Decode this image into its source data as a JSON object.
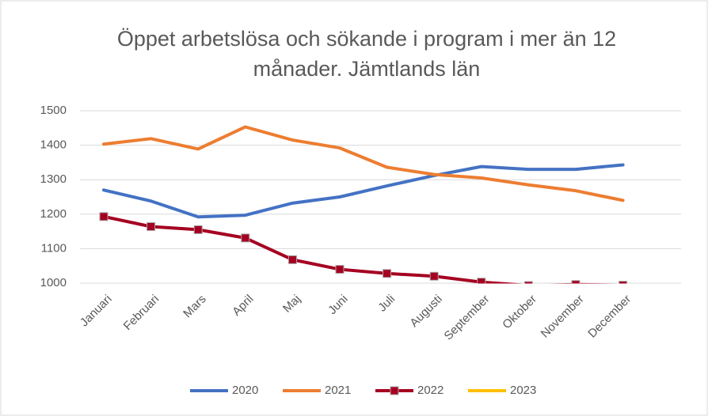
{
  "chart_data": {
    "type": "line",
    "title": "Öppet arbetslösa och sökande i program i mer än 12 månader. Jämtlands län",
    "categories": [
      "Januari",
      "Februari",
      "Mars",
      "April",
      "Maj",
      "Juni",
      "Juli",
      "Augusti",
      "September",
      "Oktober",
      "November",
      "December"
    ],
    "series": [
      {
        "name": "2020",
        "color": "#4472c4",
        "values": [
          1270,
          1238,
          1192,
          1197,
          1232,
          1250,
          1282,
          1312,
          1338,
          1330,
          1330,
          1343
        ]
      },
      {
        "name": "2021",
        "color": "#ed7d31",
        "values": [
          1403,
          1419,
          1389,
          1453,
          1415,
          1392,
          1336,
          1315,
          1305,
          1285,
          1268,
          1240
        ]
      },
      {
        "name": "2022",
        "color": "#a50021",
        "marker": "square",
        "values": [
          1193,
          1164,
          1155,
          1131,
          1068,
          1040,
          1028,
          1020,
          1003,
          993,
          996,
          994
        ]
      },
      {
        "name": "2023",
        "color": "#ffc000",
        "values": [
          null,
          null,
          null,
          null,
          null,
          null,
          null,
          null,
          null,
          null,
          null,
          null
        ]
      }
    ],
    "ylim": [
      1000,
      1500
    ],
    "yticks": [
      1000,
      1100,
      1200,
      1300,
      1400,
      1500
    ],
    "grid": true,
    "legend": "bottom"
  }
}
